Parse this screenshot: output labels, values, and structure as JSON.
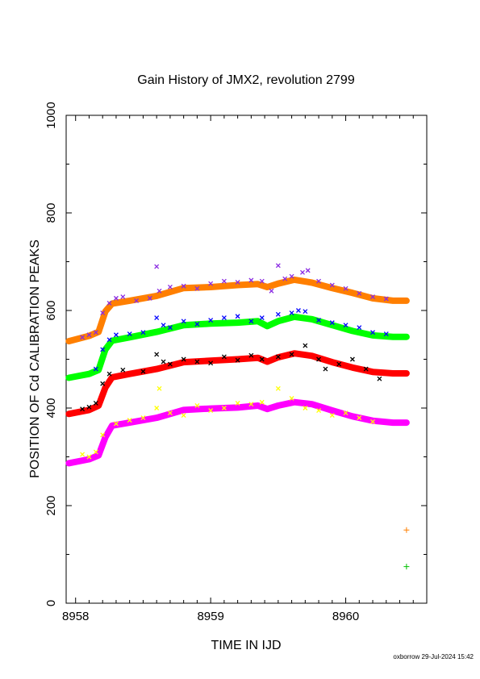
{
  "chart_data": {
    "type": "scatter",
    "title": "Gain History of JMX2, revolution 2799",
    "xlabel": "TIME IN IJD",
    "ylabel": "POSITION OF Cd CALIBRATION PEAKS",
    "xlim": [
      8957.93,
      8960.6
    ],
    "ylim": [
      0,
      1000
    ],
    "x_ticks": [
      8958,
      8959,
      8960
    ],
    "y_ticks": [
      0,
      200,
      400,
      600,
      800,
      1000
    ],
    "grid": false,
    "series": [
      {
        "color": "#ff7f00",
        "marker": "line",
        "points": [
          [
            8957.95,
            537
          ],
          [
            8958.1,
            548
          ],
          [
            8958.17,
            556
          ],
          [
            8958.22,
            598
          ],
          [
            8958.27,
            614
          ],
          [
            8958.4,
            620
          ],
          [
            8958.6,
            630
          ],
          [
            8958.8,
            646
          ],
          [
            8959.0,
            648
          ],
          [
            8959.2,
            652
          ],
          [
            8959.35,
            654
          ],
          [
            8959.42,
            648
          ],
          [
            8959.5,
            655
          ],
          [
            8959.62,
            663
          ],
          [
            8959.75,
            657
          ],
          [
            8959.9,
            646
          ],
          [
            8960.05,
            636
          ],
          [
            8960.2,
            625
          ],
          [
            8960.35,
            620
          ],
          [
            8960.45,
            620
          ]
        ]
      },
      {
        "color": "#00ff00",
        "marker": "line",
        "points": [
          [
            8957.95,
            462
          ],
          [
            8958.1,
            470
          ],
          [
            8958.17,
            478
          ],
          [
            8958.22,
            520
          ],
          [
            8958.27,
            538
          ],
          [
            8958.4,
            545
          ],
          [
            8958.6,
            556
          ],
          [
            8958.8,
            570
          ],
          [
            8959.0,
            573
          ],
          [
            8959.2,
            575
          ],
          [
            8959.35,
            578
          ],
          [
            8959.42,
            568
          ],
          [
            8959.5,
            578
          ],
          [
            8959.62,
            587
          ],
          [
            8959.75,
            582
          ],
          [
            8959.9,
            570
          ],
          [
            8960.05,
            558
          ],
          [
            8960.2,
            549
          ],
          [
            8960.35,
            546
          ],
          [
            8960.45,
            546
          ]
        ]
      },
      {
        "color": "#ff0000",
        "marker": "line",
        "points": [
          [
            8957.95,
            388
          ],
          [
            8958.1,
            396
          ],
          [
            8958.17,
            405
          ],
          [
            8958.22,
            442
          ],
          [
            8958.27,
            463
          ],
          [
            8958.4,
            470
          ],
          [
            8958.6,
            480
          ],
          [
            8958.8,
            494
          ],
          [
            8959.0,
            497
          ],
          [
            8959.2,
            500
          ],
          [
            8959.35,
            503
          ],
          [
            8959.42,
            495
          ],
          [
            8959.5,
            504
          ],
          [
            8959.62,
            512
          ],
          [
            8959.75,
            507
          ],
          [
            8959.9,
            494
          ],
          [
            8960.05,
            483
          ],
          [
            8960.2,
            474
          ],
          [
            8960.35,
            471
          ],
          [
            8960.45,
            471
          ]
        ]
      },
      {
        "color": "#ff00ff",
        "marker": "line",
        "points": [
          [
            8957.95,
            287
          ],
          [
            8958.1,
            295
          ],
          [
            8958.17,
            303
          ],
          [
            8958.22,
            340
          ],
          [
            8958.27,
            364
          ],
          [
            8958.4,
            370
          ],
          [
            8958.6,
            380
          ],
          [
            8958.8,
            396
          ],
          [
            8959.0,
            399
          ],
          [
            8959.2,
            401
          ],
          [
            8959.35,
            405
          ],
          [
            8959.42,
            398
          ],
          [
            8959.5,
            405
          ],
          [
            8959.62,
            412
          ],
          [
            8959.75,
            408
          ],
          [
            8959.9,
            395
          ],
          [
            8960.05,
            383
          ],
          [
            8960.2,
            374
          ],
          [
            8960.35,
            370
          ],
          [
            8960.45,
            370
          ]
        ]
      },
      {
        "color": "#8a2be2",
        "marker": "x",
        "points": [
          [
            8958.05,
            545
          ],
          [
            8958.1,
            550
          ],
          [
            8958.15,
            555
          ],
          [
            8958.2,
            595
          ],
          [
            8958.25,
            615
          ],
          [
            8958.3,
            625
          ],
          [
            8958.35,
            628
          ],
          [
            8958.45,
            620
          ],
          [
            8958.55,
            625
          ],
          [
            8958.6,
            690
          ],
          [
            8958.62,
            640
          ],
          [
            8958.7,
            648
          ],
          [
            8958.8,
            650
          ],
          [
            8958.9,
            645
          ],
          [
            8959.0,
            655
          ],
          [
            8959.1,
            660
          ],
          [
            8959.2,
            658
          ],
          [
            8959.3,
            662
          ],
          [
            8959.38,
            660
          ],
          [
            8959.45,
            640
          ],
          [
            8959.5,
            692
          ],
          [
            8959.55,
            665
          ],
          [
            8959.6,
            670
          ],
          [
            8959.68,
            678
          ],
          [
            8959.72,
            682
          ],
          [
            8959.8,
            660
          ],
          [
            8959.9,
            652
          ],
          [
            8960.0,
            645
          ],
          [
            8960.1,
            635
          ],
          [
            8960.2,
            628
          ],
          [
            8960.3,
            624
          ]
        ]
      },
      {
        "color": "#0000ff",
        "marker": "x",
        "points": [
          [
            8958.15,
            480
          ],
          [
            8958.2,
            520
          ],
          [
            8958.25,
            540
          ],
          [
            8958.3,
            550
          ],
          [
            8958.4,
            552
          ],
          [
            8958.5,
            555
          ],
          [
            8958.6,
            585
          ],
          [
            8958.65,
            570
          ],
          [
            8958.7,
            565
          ],
          [
            8958.8,
            578
          ],
          [
            8958.9,
            572
          ],
          [
            8959.0,
            580
          ],
          [
            8959.1,
            585
          ],
          [
            8959.2,
            588
          ],
          [
            8959.3,
            578
          ],
          [
            8959.38,
            585
          ],
          [
            8959.5,
            592
          ],
          [
            8959.6,
            595
          ],
          [
            8959.65,
            600
          ],
          [
            8959.7,
            598
          ],
          [
            8959.8,
            580
          ],
          [
            8959.9,
            575
          ],
          [
            8960.0,
            570
          ],
          [
            8960.1,
            565
          ],
          [
            8960.2,
            555
          ],
          [
            8960.3,
            552
          ]
        ]
      },
      {
        "color": "#000000",
        "marker": "x",
        "points": [
          [
            8958.05,
            398
          ],
          [
            8958.1,
            402
          ],
          [
            8958.15,
            410
          ],
          [
            8958.2,
            450
          ],
          [
            8958.25,
            470
          ],
          [
            8958.35,
            478
          ],
          [
            8958.5,
            475
          ],
          [
            8958.6,
            510
          ],
          [
            8958.65,
            495
          ],
          [
            8958.7,
            490
          ],
          [
            8958.8,
            500
          ],
          [
            8958.9,
            495
          ],
          [
            8959.0,
            492
          ],
          [
            8959.1,
            505
          ],
          [
            8959.2,
            498
          ],
          [
            8959.3,
            508
          ],
          [
            8959.38,
            500
          ],
          [
            8959.5,
            505
          ],
          [
            8959.6,
            510
          ],
          [
            8959.7,
            528
          ],
          [
            8959.8,
            500
          ],
          [
            8959.85,
            480
          ],
          [
            8959.95,
            490
          ],
          [
            8960.05,
            500
          ],
          [
            8960.15,
            480
          ],
          [
            8960.25,
            460
          ]
        ]
      },
      {
        "color": "#ffff00",
        "marker": "x",
        "points": [
          [
            8958.05,
            305
          ],
          [
            8958.1,
            300
          ],
          [
            8958.15,
            310
          ],
          [
            8958.2,
            345
          ],
          [
            8958.3,
            368
          ],
          [
            8958.4,
            375
          ],
          [
            8958.5,
            380
          ],
          [
            8958.6,
            400
          ],
          [
            8958.62,
            440
          ],
          [
            8958.7,
            390
          ],
          [
            8958.8,
            385
          ],
          [
            8958.9,
            405
          ],
          [
            8959.0,
            395
          ],
          [
            8959.1,
            400
          ],
          [
            8959.2,
            410
          ],
          [
            8959.3,
            408
          ],
          [
            8959.38,
            412
          ],
          [
            8959.5,
            440
          ],
          [
            8959.6,
            420
          ],
          [
            8959.7,
            400
          ],
          [
            8959.8,
            395
          ],
          [
            8959.9,
            385
          ],
          [
            8960.0,
            390
          ],
          [
            8960.1,
            380
          ],
          [
            8960.2,
            372
          ]
        ]
      },
      {
        "color": "#ff7f00",
        "marker": "+",
        "points": [
          [
            8960.45,
            150
          ]
        ]
      },
      {
        "color": "#00c000",
        "marker": "+",
        "points": [
          [
            8960.45,
            75
          ]
        ]
      }
    ]
  },
  "footer": "oxborrow 29-Jul-2024 15:42"
}
